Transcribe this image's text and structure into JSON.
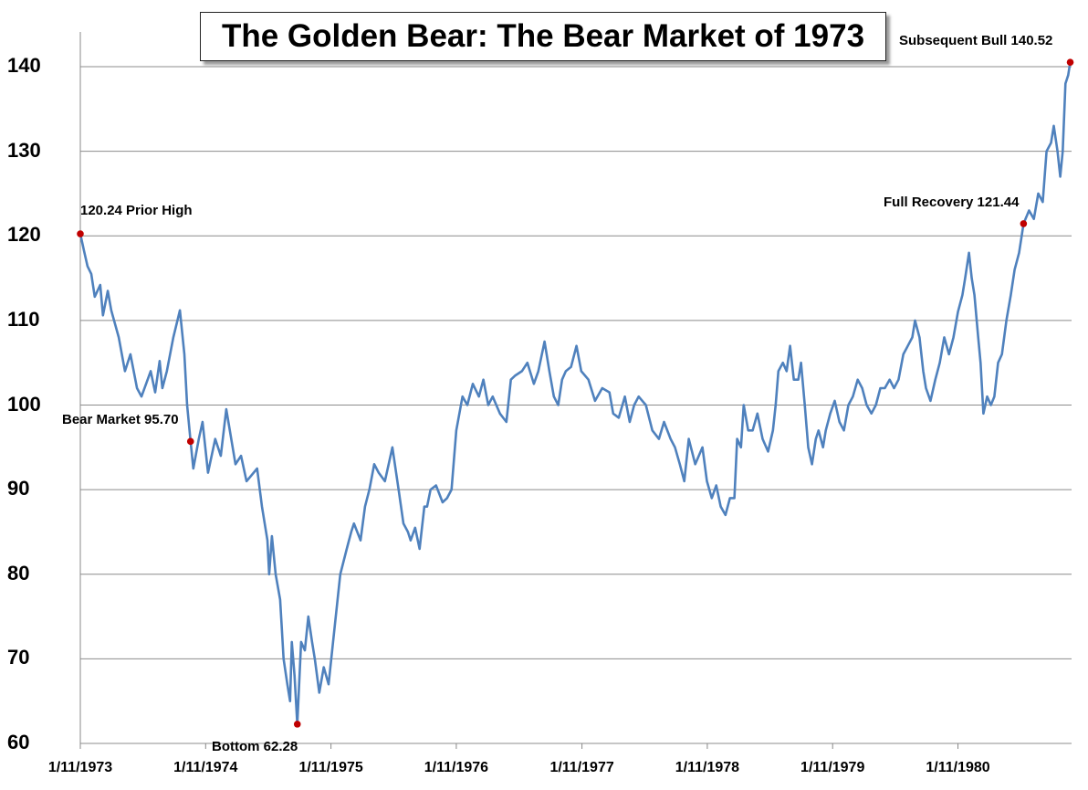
{
  "chart_data": {
    "type": "line",
    "title": "The Golden Bear: The Bear Market of 1973",
    "xlabel": "",
    "ylabel": "",
    "ylim": [
      60,
      140
    ],
    "xlim": [
      "1973-01-11",
      "1980-12-05"
    ],
    "grid": true,
    "legend": "none",
    "line_color": "#4f81bd",
    "marker_color": "#c00000",
    "yticks": [
      "60",
      "70",
      "80",
      "90",
      "100",
      "110",
      "120",
      "130",
      "140"
    ],
    "xticks": [
      "1/11/1973",
      "1/11/1974",
      "1/11/1975",
      "1/11/1976",
      "1/11/1977",
      "1/11/1978",
      "1/11/1979",
      "1/11/1980"
    ],
    "xtick_dates": [
      "1973-01-11",
      "1974-01-11",
      "1975-01-11",
      "1976-01-11",
      "1977-01-11",
      "1978-01-11",
      "1979-01-11",
      "1980-01-11"
    ],
    "annotations": [
      {
        "label": "120.24 Prior High",
        "date": "1973-01-11",
        "value": 120.24
      },
      {
        "label": "Bear Market  95.70",
        "date": "1973-11-28",
        "value": 95.7
      },
      {
        "label": "Bottom 62.28",
        "date": "1974-10-05",
        "value": 62.28
      },
      {
        "label": "Full Recovery 121.44",
        "date": "1980-07-20",
        "value": 121.44
      },
      {
        "label": "Subsequent Bull 140.52",
        "date": "1980-12-03",
        "value": 140.52
      }
    ],
    "series": [
      {
        "points": [
          [
            "1973-01-11",
            120.24
          ],
          [
            "1973-01-22",
            118.2
          ],
          [
            "1973-02-01",
            116.4
          ],
          [
            "1973-02-12",
            115.5
          ],
          [
            "1973-02-22",
            112.8
          ],
          [
            "1973-03-10",
            114.2
          ],
          [
            "1973-03-18",
            110.6
          ],
          [
            "1973-04-01",
            113.5
          ],
          [
            "1973-04-11",
            111.2
          ],
          [
            "1973-05-03",
            108
          ],
          [
            "1973-05-21",
            104
          ],
          [
            "1973-06-06",
            106
          ],
          [
            "1973-06-25",
            102
          ],
          [
            "1973-07-08",
            101
          ],
          [
            "1973-08-04",
            104
          ],
          [
            "1973-08-17",
            101.5
          ],
          [
            "1973-08-30",
            105.2
          ],
          [
            "1973-09-07",
            102
          ],
          [
            "1973-09-20",
            104
          ],
          [
            "1973-10-09",
            108
          ],
          [
            "1973-10-28",
            111.2
          ],
          [
            "1973-11-10",
            106
          ],
          [
            "1973-11-18",
            100
          ],
          [
            "1973-11-28",
            95.7
          ],
          [
            "1973-12-06",
            92.5
          ],
          [
            "1973-12-22",
            96
          ],
          [
            "1974-01-02",
            98
          ],
          [
            "1974-01-18",
            92
          ],
          [
            "1974-02-08",
            96
          ],
          [
            "1974-02-24",
            94
          ],
          [
            "1974-03-12",
            99.5
          ],
          [
            "1974-04-08",
            93
          ],
          [
            "1974-04-24",
            94
          ],
          [
            "1974-05-10",
            91
          ],
          [
            "1974-06-10",
            92.5
          ],
          [
            "1974-06-24",
            88
          ],
          [
            "1974-07-10",
            84
          ],
          [
            "1974-07-15",
            80
          ],
          [
            "1974-07-23",
            84.5
          ],
          [
            "1974-08-03",
            80
          ],
          [
            "1974-08-16",
            77
          ],
          [
            "1974-08-26",
            70
          ],
          [
            "1974-09-06",
            67
          ],
          [
            "1974-09-14",
            65
          ],
          [
            "1974-09-19",
            72
          ],
          [
            "1974-09-27",
            68
          ],
          [
            "1974-10-05",
            62.28
          ],
          [
            "1974-10-16",
            72
          ],
          [
            "1974-10-27",
            71
          ],
          [
            "1974-11-06",
            75
          ],
          [
            "1974-11-17",
            72
          ],
          [
            "1974-11-25",
            70
          ],
          [
            "1974-12-08",
            66
          ],
          [
            "1974-12-21",
            69
          ],
          [
            "1975-01-04",
            67
          ],
          [
            "1975-01-17",
            72
          ],
          [
            "1975-02-07",
            80
          ],
          [
            "1975-02-26",
            83
          ],
          [
            "1975-03-11",
            85
          ],
          [
            "1975-03-19",
            86
          ],
          [
            "1975-04-07",
            84
          ],
          [
            "1975-04-20",
            88
          ],
          [
            "1975-05-03",
            90
          ],
          [
            "1975-05-17",
            93
          ],
          [
            "1975-05-30",
            92
          ],
          [
            "1975-06-17",
            91
          ],
          [
            "1975-07-09",
            95
          ],
          [
            "1975-07-27",
            90
          ],
          [
            "1975-08-10",
            86
          ],
          [
            "1975-08-23",
            85
          ],
          [
            "1975-08-31",
            84
          ],
          [
            "1975-09-13",
            85.5
          ],
          [
            "1975-09-26",
            83
          ],
          [
            "1975-10-10",
            88
          ],
          [
            "1975-10-18",
            88
          ],
          [
            "1975-10-28",
            90
          ],
          [
            "1975-11-13",
            90.5
          ],
          [
            "1975-12-02",
            88.5
          ],
          [
            "1975-12-15",
            89
          ],
          [
            "1975-12-28",
            90
          ],
          [
            "1976-01-11",
            97
          ],
          [
            "1976-01-29",
            101
          ],
          [
            "1976-02-12",
            100
          ],
          [
            "1976-02-28",
            102.5
          ],
          [
            "1976-03-17",
            101
          ],
          [
            "1976-03-30",
            103
          ],
          [
            "1976-04-13",
            100
          ],
          [
            "1976-04-26",
            101
          ],
          [
            "1976-05-17",
            99
          ],
          [
            "1976-06-05",
            98
          ],
          [
            "1976-06-18",
            103
          ],
          [
            "1976-07-01",
            103.5
          ],
          [
            "1976-07-20",
            104
          ],
          [
            "1976-08-05",
            105
          ],
          [
            "1976-08-24",
            102.5
          ],
          [
            "1976-09-06",
            104
          ],
          [
            "1976-09-24",
            107.5
          ],
          [
            "1976-10-08",
            104
          ],
          [
            "1976-10-21",
            101
          ],
          [
            "1976-11-03",
            100
          ],
          [
            "1976-11-14",
            103
          ],
          [
            "1976-11-25",
            104
          ],
          [
            "1976-12-10",
            104.5
          ],
          [
            "1976-12-26",
            107
          ],
          [
            "1977-01-09",
            104
          ],
          [
            "1977-01-30",
            103
          ],
          [
            "1977-02-18",
            100.5
          ],
          [
            "1977-03-11",
            102
          ],
          [
            "1977-04-01",
            101.5
          ],
          [
            "1977-04-12",
            99
          ],
          [
            "1977-04-28",
            98.5
          ],
          [
            "1977-05-16",
            101
          ],
          [
            "1977-05-30",
            98
          ],
          [
            "1977-06-12",
            100
          ],
          [
            "1977-06-25",
            101
          ],
          [
            "1977-07-16",
            100
          ],
          [
            "1977-08-04",
            97
          ],
          [
            "1977-08-23",
            96
          ],
          [
            "1977-09-07",
            98
          ],
          [
            "1977-09-26",
            96
          ],
          [
            "1977-10-09",
            95
          ],
          [
            "1977-10-23",
            93
          ],
          [
            "1977-11-05",
            91
          ],
          [
            "1977-11-18",
            96
          ],
          [
            "1977-12-07",
            93
          ],
          [
            "1977-12-28",
            95
          ],
          [
            "1978-01-10",
            91
          ],
          [
            "1978-01-24",
            89
          ],
          [
            "1978-02-06",
            90.5
          ],
          [
            "1978-02-19",
            88
          ],
          [
            "1978-03-05",
            87
          ],
          [
            "1978-03-18",
            89
          ],
          [
            "1978-03-31",
            89
          ],
          [
            "1978-04-08",
            96
          ],
          [
            "1978-04-19",
            95
          ],
          [
            "1978-04-27",
            100
          ],
          [
            "1978-05-10",
            97
          ],
          [
            "1978-05-23",
            97
          ],
          [
            "1978-06-06",
            99
          ],
          [
            "1978-06-21",
            96
          ],
          [
            "1978-07-07",
            94.5
          ],
          [
            "1978-07-21",
            97
          ],
          [
            "1978-07-29",
            100
          ],
          [
            "1978-08-06",
            104
          ],
          [
            "1978-08-19",
            105
          ],
          [
            "1978-08-30",
            104
          ],
          [
            "1978-09-09",
            107
          ],
          [
            "1978-09-20",
            103
          ],
          [
            "1978-10-03",
            103
          ],
          [
            "1978-10-11",
            105
          ],
          [
            "1978-10-22",
            100
          ],
          [
            "1978-11-01",
            95
          ],
          [
            "1978-11-12",
            93
          ],
          [
            "1978-11-23",
            96
          ],
          [
            "1978-12-01",
            97
          ],
          [
            "1978-12-14",
            95
          ],
          [
            "1978-12-22",
            97
          ],
          [
            "1979-01-04",
            99
          ],
          [
            "1979-01-17",
            100.5
          ],
          [
            "1979-01-31",
            98
          ],
          [
            "1979-02-13",
            97
          ],
          [
            "1979-02-26",
            100
          ],
          [
            "1979-03-11",
            101
          ],
          [
            "1979-03-25",
            103
          ],
          [
            "1979-04-07",
            102
          ],
          [
            "1979-04-20",
            100
          ],
          [
            "1979-05-04",
            99
          ],
          [
            "1979-05-17",
            100
          ],
          [
            "1979-05-30",
            102
          ],
          [
            "1979-06-12",
            102
          ],
          [
            "1979-06-26",
            103
          ],
          [
            "1979-07-09",
            102
          ],
          [
            "1979-07-22",
            103
          ],
          [
            "1979-08-05",
            106
          ],
          [
            "1979-08-18",
            107
          ],
          [
            "1979-08-31",
            108
          ],
          [
            "1979-09-08",
            110
          ],
          [
            "1979-09-21",
            108
          ],
          [
            "1979-10-02",
            104
          ],
          [
            "1979-10-10",
            102
          ],
          [
            "1979-10-23",
            100.5
          ],
          [
            "1979-11-06",
            103
          ],
          [
            "1979-11-19",
            105
          ],
          [
            "1979-12-02",
            108
          ],
          [
            "1979-12-16",
            106
          ],
          [
            "1979-12-29",
            108
          ],
          [
            "1980-01-11",
            111
          ],
          [
            "1980-01-24",
            113
          ],
          [
            "1980-02-01",
            115
          ],
          [
            "1980-02-12",
            118
          ],
          [
            "1980-02-20",
            115
          ],
          [
            "1980-02-28",
            113
          ],
          [
            "1980-03-10",
            108
          ],
          [
            "1980-03-17",
            105
          ],
          [
            "1980-03-25",
            99
          ],
          [
            "1980-04-05",
            101
          ],
          [
            "1980-04-16",
            100
          ],
          [
            "1980-04-26",
            101
          ],
          [
            "1980-05-07",
            105
          ],
          [
            "1980-05-18",
            106
          ],
          [
            "1980-05-31",
            110
          ],
          [
            "1980-06-13",
            113
          ],
          [
            "1980-06-24",
            116
          ],
          [
            "1980-07-07",
            118
          ],
          [
            "1980-07-20",
            121.44
          ],
          [
            "1980-08-05",
            123
          ],
          [
            "1980-08-19",
            122
          ],
          [
            "1980-09-01",
            125
          ],
          [
            "1980-09-14",
            124
          ],
          [
            "1980-09-25",
            130
          ],
          [
            "1980-10-08",
            131
          ],
          [
            "1980-10-16",
            133
          ],
          [
            "1980-10-27",
            130
          ],
          [
            "1980-11-04",
            127
          ],
          [
            "1980-11-11",
            130
          ],
          [
            "1980-11-19",
            138
          ],
          [
            "1980-11-27",
            139
          ],
          [
            "1980-12-03",
            140.52
          ]
        ]
      }
    ]
  }
}
